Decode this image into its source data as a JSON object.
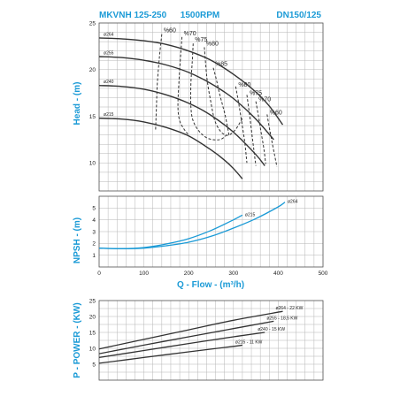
{
  "header": {
    "model": "MKVNH 125-250",
    "speed": "1500RPM",
    "size": "DN150/125"
  },
  "chart_data": [
    {
      "type": "line",
      "title": "",
      "ylabel": "Head - (m)",
      "xlim": [
        0,
        500
      ],
      "ylim": [
        7,
        25
      ],
      "yticks": [
        10,
        15,
        20,
        25
      ],
      "grid": true,
      "series": [
        {
          "name": "ø264",
          "x": [
            0,
            50,
            100,
            150,
            200,
            250,
            300,
            350,
            380,
            410
          ],
          "y": [
            23.4,
            23.3,
            23.1,
            22.7,
            22.0,
            21.0,
            19.5,
            17.6,
            16.1,
            14.1
          ]
        },
        {
          "name": "ø255",
          "x": [
            0,
            50,
            100,
            150,
            200,
            250,
            300,
            350,
            390
          ],
          "y": [
            21.4,
            21.3,
            21.0,
            20.5,
            19.7,
            18.5,
            16.9,
            14.7,
            12.5
          ]
        },
        {
          "name": "ø240",
          "x": [
            0,
            50,
            100,
            150,
            200,
            250,
            300,
            350,
            370
          ],
          "y": [
            18.3,
            18.2,
            17.9,
            17.3,
            16.4,
            15.1,
            13.3,
            10.9,
            9.7
          ]
        },
        {
          "name": "ø215",
          "x": [
            0,
            50,
            100,
            150,
            200,
            250,
            280,
            300,
            320
          ],
          "y": [
            14.8,
            14.7,
            14.4,
            13.8,
            12.9,
            11.4,
            10.3,
            9.4,
            8.3
          ]
        }
      ],
      "efficiency": [
        {
          "name": "%60",
          "x": [
            140,
            135,
            130,
            128,
            126
          ],
          "y": [
            23.8,
            21.5,
            18.6,
            16.0,
            13.4
          ]
        },
        {
          "name": "%70",
          "x": [
            185,
            182,
            178,
            176,
            180,
            190,
            200
          ],
          "y": [
            23.5,
            21.5,
            18.5,
            16.0,
            14.5,
            13.6,
            13.0
          ]
        },
        {
          "name": "%75",
          "x": [
            210,
            208,
            205,
            205,
            210,
            225,
            245,
            270,
            285
          ],
          "y": [
            22.8,
            20.8,
            18.5,
            16.0,
            14.5,
            13.3,
            12.6,
            12.5,
            13.0
          ]
        },
        {
          "name": "%80",
          "x": [
            235,
            238,
            242,
            250,
            258,
            268,
            278,
            290,
            305,
            320
          ],
          "y": [
            22.4,
            20.6,
            18.6,
            16.4,
            14.6,
            13.6,
            13.1,
            13.0,
            13.6,
            14.8
          ]
        },
        {
          "name": "%85",
          "x": [
            255,
            262,
            268,
            275,
            282,
            290
          ],
          "y": [
            20.2,
            18.9,
            17.6,
            16.3,
            15.0,
            13.0
          ]
        },
        {
          "name": "%80",
          "x": [
            305,
            312,
            318,
            325,
            330
          ],
          "y": [
            18.2,
            16.3,
            14.5,
            12.3,
            10.0
          ]
        },
        {
          "name": "%75",
          "x": [
            330,
            335,
            340,
            345,
            350
          ],
          "y": [
            17.3,
            15.5,
            13.6,
            11.6,
            9.7
          ]
        },
        {
          "name": "%70",
          "x": [
            350,
            356,
            362,
            368,
            372
          ],
          "y": [
            16.6,
            15.0,
            13.2,
            11.5,
            9.9
          ]
        },
        {
          "name": "%60",
          "x": [
            375,
            380,
            386,
            392,
            397
          ],
          "y": [
            15.2,
            13.8,
            12.3,
            10.8,
            9.6
          ]
        }
      ],
      "effLabels": [
        "%60",
        "%70",
        "%75",
        "%80",
        "%85",
        "%80",
        "%75",
        "%70",
        "%60"
      ],
      "diaLabels": [
        "ø264",
        "ø255",
        "ø240",
        "ø215"
      ]
    },
    {
      "type": "line",
      "title": "",
      "ylabel": "NPSH - (m)",
      "xlabel": "Q - Flow - (m³/h)",
      "xlim": [
        0,
        500
      ],
      "xticks": [
        0,
        100,
        200,
        300,
        400,
        500
      ],
      "ylim": [
        0,
        6
      ],
      "yticks": [
        1,
        2,
        3,
        4,
        5
      ],
      "grid": true,
      "series": [
        {
          "name": "ø264",
          "x": [
            0,
            50,
            100,
            150,
            200,
            250,
            300,
            350,
            400,
            415
          ],
          "y": [
            1.6,
            1.55,
            1.6,
            1.8,
            2.1,
            2.6,
            3.3,
            4.1,
            5.1,
            5.5
          ]
        },
        {
          "name": "ø215",
          "x": [
            0,
            50,
            100,
            150,
            200,
            250,
            300,
            320
          ],
          "y": [
            1.6,
            1.55,
            1.65,
            1.95,
            2.4,
            3.1,
            4.0,
            4.4
          ]
        }
      ]
    },
    {
      "type": "line",
      "title": "",
      "ylabel": "P - POWER - (KW)",
      "xlim": [
        0,
        500
      ],
      "ylim": [
        0,
        25
      ],
      "yticks": [
        5,
        10,
        15,
        20,
        25
      ],
      "grid": true,
      "series": [
        {
          "name": "ø264 - 22 KW",
          "x": [
            0,
            100,
            200,
            300,
            410
          ],
          "y": [
            9.8,
            12.8,
            15.8,
            18.8,
            21.6
          ]
        },
        {
          "name": "ø255 - 18,5 KW",
          "x": [
            0,
            100,
            200,
            300,
            390
          ],
          "y": [
            8.3,
            11.0,
            13.6,
            16.2,
            18.5
          ]
        },
        {
          "name": "ø240 - 15 KW",
          "x": [
            0,
            100,
            200,
            300,
            370
          ],
          "y": [
            7.1,
            9.3,
            11.5,
            13.6,
            15.0
          ]
        },
        {
          "name": "ø215 - 11 KW",
          "x": [
            0,
            100,
            200,
            300,
            320
          ],
          "y": [
            5.3,
            7.1,
            8.9,
            10.6,
            11.0
          ]
        }
      ]
    }
  ],
  "colors": {
    "accent": "#1a9ad6",
    "curve": "#333333",
    "npsh": "#1a9ad6",
    "grid": "#b5b5b5",
    "frame": "#555555"
  }
}
